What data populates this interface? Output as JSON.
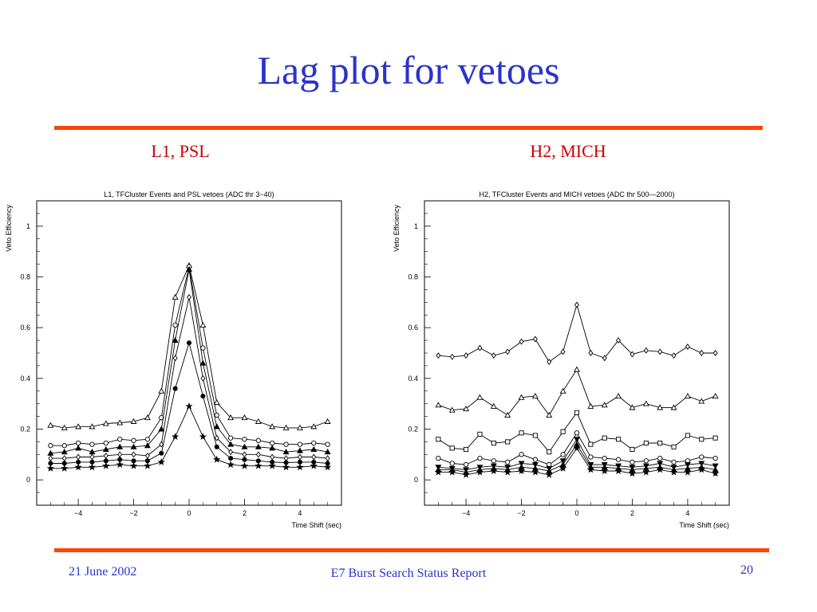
{
  "slide": {
    "title": "Lag plot for vetoes",
    "subtitle_left": "L1, PSL",
    "subtitle_right": "H2, MICH",
    "footer_date": "21 June 2002",
    "footer_title": "E7 Burst Search Status Report",
    "page_number": "20"
  },
  "chart_data": [
    {
      "type": "line",
      "title": "L1, TFCluster Events and PSL vetoes (ADC thr 3−40)",
      "xlabel": "Time Shift (sec)",
      "ylabel": "Veto Efficiency",
      "xlim": [
        -5.5,
        5.5
      ],
      "ylim": [
        -0.1,
        1.1
      ],
      "xticks": [
        -4,
        -2,
        0,
        2,
        4
      ],
      "xtick_labels": [
        "−4",
        "−2",
        "0",
        "2",
        "4"
      ],
      "yticks": [
        0,
        0.2,
        0.4,
        0.6,
        0.8,
        1
      ],
      "ytick_labels": [
        "0",
        "0.2",
        "0.4",
        "0.6",
        "0.8",
        "1"
      ],
      "x": [
        -5,
        -4.5,
        -4,
        -3.5,
        -3,
        -2.5,
        -2,
        -1.5,
        -1,
        -0.5,
        0,
        0.5,
        1,
        1.5,
        2,
        2.5,
        3,
        3.5,
        4,
        4.5,
        5
      ],
      "series": [
        {
          "marker": "triangle",
          "values": [
            0.215,
            0.205,
            0.21,
            0.21,
            0.222,
            0.225,
            0.23,
            0.245,
            0.35,
            0.72,
            0.845,
            0.61,
            0.305,
            0.245,
            0.245,
            0.23,
            0.21,
            0.205,
            0.205,
            0.21,
            0.23
          ]
        },
        {
          "marker": "circle",
          "values": [
            0.135,
            0.135,
            0.145,
            0.14,
            0.145,
            0.16,
            0.155,
            0.16,
            0.245,
            0.61,
            0.84,
            0.52,
            0.255,
            0.165,
            0.16,
            0.155,
            0.145,
            0.14,
            0.14,
            0.145,
            0.14
          ]
        },
        {
          "marker": "filled-triangle",
          "values": [
            0.105,
            0.11,
            0.125,
            0.11,
            0.12,
            0.13,
            0.13,
            0.135,
            0.2,
            0.55,
            0.83,
            0.46,
            0.21,
            0.14,
            0.13,
            0.13,
            0.125,
            0.11,
            0.115,
            0.12,
            0.11
          ]
        },
        {
          "marker": "diamond",
          "values": [
            0.085,
            0.085,
            0.09,
            0.09,
            0.095,
            0.1,
            0.1,
            0.095,
            0.14,
            0.48,
            0.72,
            0.4,
            0.165,
            0.11,
            0.1,
            0.1,
            0.09,
            0.085,
            0.09,
            0.09,
            0.085
          ]
        },
        {
          "marker": "filled-circle",
          "values": [
            0.065,
            0.065,
            0.07,
            0.07,
            0.075,
            0.08,
            0.075,
            0.075,
            0.105,
            0.36,
            0.54,
            0.33,
            0.13,
            0.085,
            0.08,
            0.075,
            0.07,
            0.068,
            0.07,
            0.07,
            0.065
          ]
        },
        {
          "marker": "star",
          "values": [
            0.045,
            0.045,
            0.05,
            0.05,
            0.055,
            0.06,
            0.055,
            0.055,
            0.07,
            0.17,
            0.29,
            0.17,
            0.08,
            0.06,
            0.055,
            0.055,
            0.055,
            0.05,
            0.05,
            0.055,
            0.05
          ]
        }
      ]
    },
    {
      "type": "line",
      "title": "H2, TFCluster Events and MICH vetoes (ADC thr 500—2000)",
      "xlabel": "Time Shift (sec)",
      "ylabel": "Veto Efficiency",
      "xlim": [
        -5.5,
        5.5
      ],
      "ylim": [
        -0.1,
        1.1
      ],
      "xticks": [
        -4,
        -2,
        0,
        2,
        4
      ],
      "xtick_labels": [
        "−4",
        "−2",
        "0",
        "2",
        "4"
      ],
      "yticks": [
        0,
        0.2,
        0.4,
        0.6,
        0.8,
        1
      ],
      "ytick_labels": [
        "0",
        "0.2",
        "0.4",
        "0.6",
        "0.8",
        "1"
      ],
      "x": [
        -5,
        -4.5,
        -4,
        -3.5,
        -3,
        -2.5,
        -2,
        -1.5,
        -1,
        -0.5,
        0,
        0.5,
        1,
        1.5,
        2,
        2.5,
        3,
        3.5,
        4,
        4.5,
        5
      ],
      "series": [
        {
          "marker": "diamond",
          "values": [
            0.49,
            0.485,
            0.49,
            0.52,
            0.49,
            0.505,
            0.545,
            0.555,
            0.465,
            0.505,
            0.69,
            0.5,
            0.48,
            0.55,
            0.495,
            0.51,
            0.505,
            0.49,
            0.525,
            0.5,
            0.5
          ]
        },
        {
          "marker": "triangle",
          "values": [
            0.295,
            0.275,
            0.28,
            0.325,
            0.29,
            0.255,
            0.325,
            0.33,
            0.255,
            0.35,
            0.435,
            0.29,
            0.295,
            0.33,
            0.285,
            0.3,
            0.285,
            0.285,
            0.33,
            0.31,
            0.33
          ]
        },
        {
          "marker": "square",
          "values": [
            0.16,
            0.125,
            0.12,
            0.18,
            0.145,
            0.15,
            0.185,
            0.175,
            0.11,
            0.19,
            0.265,
            0.14,
            0.165,
            0.16,
            0.12,
            0.145,
            0.145,
            0.13,
            0.175,
            0.16,
            0.165
          ]
        },
        {
          "marker": "circle",
          "values": [
            0.085,
            0.065,
            0.06,
            0.085,
            0.075,
            0.07,
            0.1,
            0.08,
            0.06,
            0.1,
            0.185,
            0.09,
            0.085,
            0.08,
            0.07,
            0.075,
            0.085,
            0.07,
            0.075,
            0.09,
            0.085
          ]
        },
        {
          "marker": "filled-triangle-down",
          "values": [
            0.05,
            0.045,
            0.04,
            0.05,
            0.055,
            0.05,
            0.065,
            0.06,
            0.045,
            0.075,
            0.16,
            0.06,
            0.06,
            0.055,
            0.05,
            0.055,
            0.065,
            0.05,
            0.06,
            0.065,
            0.055
          ]
        },
        {
          "marker": "filled-triangle",
          "values": [
            0.04,
            0.04,
            0.03,
            0.04,
            0.045,
            0.04,
            0.05,
            0.045,
            0.035,
            0.06,
            0.14,
            0.05,
            0.05,
            0.045,
            0.04,
            0.045,
            0.05,
            0.04,
            0.045,
            0.05,
            0.04
          ]
        },
        {
          "marker": "star",
          "values": [
            0.03,
            0.03,
            0.02,
            0.03,
            0.035,
            0.03,
            0.035,
            0.03,
            0.02,
            0.045,
            0.125,
            0.04,
            0.035,
            0.035,
            0.025,
            0.03,
            0.04,
            0.03,
            0.03,
            0.04,
            0.025
          ]
        }
      ]
    }
  ]
}
